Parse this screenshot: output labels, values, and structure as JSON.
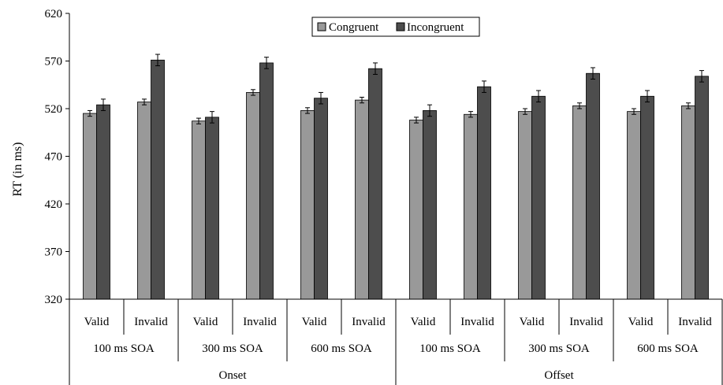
{
  "chart_data": {
    "type": "bar",
    "ylabel": "RT (in ms)",
    "ylim": [
      320,
      620
    ],
    "yticks": [
      320,
      370,
      420,
      470,
      520,
      570,
      620
    ],
    "grid": false,
    "legend_position": "top-center",
    "categories": [
      "Valid",
      "Invalid",
      "Valid",
      "Invalid",
      "Valid",
      "Invalid",
      "Valid",
      "Invalid",
      "Valid",
      "Invalid",
      "Valid",
      "Invalid"
    ],
    "group_labels": [
      "100 ms SOA",
      "300 ms SOA",
      "600 ms SOA",
      "100 ms SOA",
      "300 ms SOA",
      "600 ms SOA"
    ],
    "top_groups": [
      "Onset",
      "Offset"
    ],
    "series": [
      {
        "name": "Congruent",
        "color": "#999999",
        "values": [
          515,
          527,
          507,
          537,
          518,
          529,
          508,
          514,
          517,
          523,
          517,
          523
        ],
        "errors": [
          3,
          3,
          3,
          3,
          3,
          3,
          3,
          3,
          3,
          3,
          3,
          3
        ]
      },
      {
        "name": "Incongruent",
        "color": "#4d4d4d",
        "values": [
          524,
          571,
          511,
          568,
          531,
          562,
          518,
          543,
          533,
          557,
          533,
          554
        ],
        "errors": [
          6,
          6,
          6,
          6,
          6,
          6,
          6,
          6,
          6,
          6,
          6,
          6
        ]
      }
    ]
  }
}
